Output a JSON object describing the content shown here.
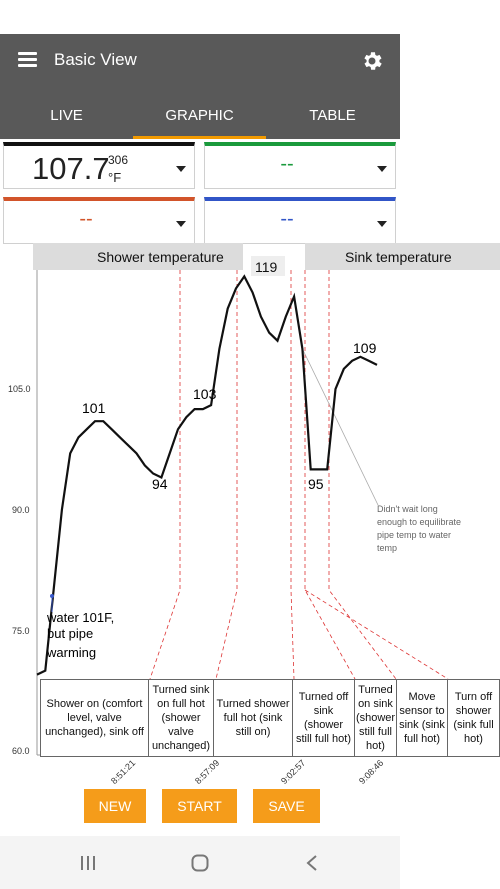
{
  "app": {
    "title": "Basic View",
    "tabs": [
      "LIVE",
      "GRAPHIC",
      "TABLE"
    ],
    "active_tab": "GRAPHIC"
  },
  "sensors": [
    {
      "value": "107.7",
      "id": "306",
      "unit": "°F",
      "color": "#111111"
    },
    {
      "value": "--",
      "color": "#1a9a3c"
    },
    {
      "value": "--",
      "color": "#d2542a"
    },
    {
      "value": "--",
      "color": "#3155c7"
    }
  ],
  "chart_headers": {
    "left": "Shower temperature",
    "right": "Sink temperature"
  },
  "y_ticks": [
    "105.0",
    "90.0",
    "75.0",
    "60.0"
  ],
  "x_ticks": [
    "8:51:21",
    "8:57:09",
    "9:02:57",
    "9:08:46"
  ],
  "annotations": {
    "peak_119": "119",
    "peak_101": "101",
    "peak_103": "103",
    "low_94": "94",
    "low_95": "95",
    "peak_109": "109",
    "water_note": [
      "water 101F,",
      "but pipe",
      "warming"
    ],
    "wait_note": [
      "Didn't wait long",
      "enough to equilibrate",
      "pipe temp to water",
      "temp"
    ]
  },
  "notes": [
    "Shower on (comfort level, valve unchanged), sink off",
    "Turned sink on full hot (shower valve unchanged)",
    "Turned shower full hot (sink still on)",
    "Turned off sink (shower still full hot)",
    "Turned on sink (shower still full hot)",
    "Move sensor to sink (sink full hot)",
    "Turn off shower (sink full hot)"
  ],
  "buttons": {
    "new": "NEW",
    "start": "START",
    "save": "SAVE"
  },
  "chart_data": {
    "type": "line",
    "title": "",
    "xlabel": "",
    "ylabel": "",
    "x_tick_labels": [
      "8:51:21",
      "8:57:09",
      "9:02:57",
      "9:08:46"
    ],
    "y_ticks": [
      60.0,
      75.0,
      90.0,
      105.0
    ],
    "ylim": [
      60,
      120
    ],
    "series": [
      {
        "values": [
          69.5,
          70,
          80,
          90,
          97,
          99,
          100,
          101,
          101,
          100,
          99,
          98,
          97,
          95.5,
          94.5,
          94,
          97,
          100,
          101.5,
          102.5,
          102.5,
          103,
          110,
          115,
          117.5,
          119,
          117,
          114,
          112,
          111,
          114,
          116.5,
          110,
          95,
          95,
          95,
          105,
          107.5,
          108.5,
          109,
          108.5,
          108
        ]
      }
    ]
  }
}
